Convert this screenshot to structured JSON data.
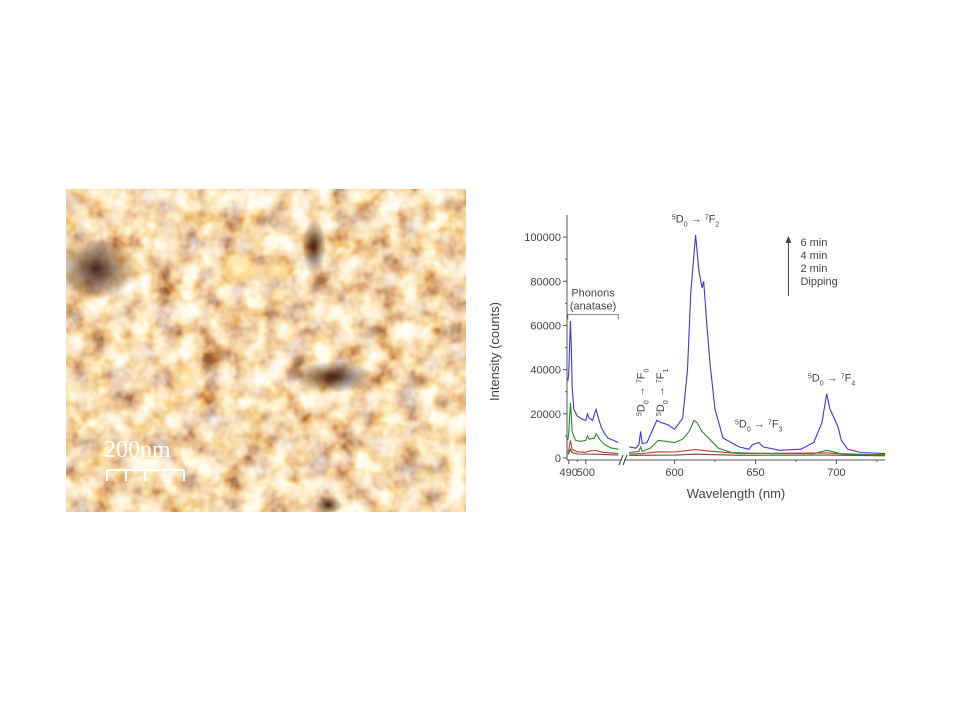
{
  "afm_image": {
    "scale_bar_label": "200nm",
    "colors": {
      "dark": "#3a0e00",
      "mid": "#b85510",
      "light": "#fff0b0"
    }
  },
  "chart_data": {
    "type": "line",
    "xlabel": "Wavelength (nm)",
    "ylabel": "Intensity (counts)",
    "xlim_left": [
      489,
      520
    ],
    "xlim_right": [
      570,
      730
    ],
    "ylim": [
      0,
      110000
    ],
    "x_ticks": [
      490,
      500,
      600,
      650,
      700
    ],
    "y_ticks": [
      0,
      20000,
      40000,
      60000,
      80000,
      100000
    ],
    "axis_break": true,
    "grid": false,
    "legend": {
      "placement": "top-right",
      "entries": [
        "6 min",
        "4 min",
        "2 min",
        "Dipping"
      ],
      "arrow": "up"
    },
    "annotations": [
      {
        "base": "D",
        "sup1": "5",
        "sub1": "0",
        "final": "F",
        "sup2": "7",
        "sub2": "2",
        "x": 613,
        "y": 104000,
        "rotated": false
      },
      {
        "base": "D",
        "sup1": "5",
        "sub1": "0",
        "final": "F",
        "sup2": "7",
        "sub2": "0",
        "x": 579,
        "y": 19000,
        "rotated": true
      },
      {
        "base": "D",
        "sup1": "5",
        "sub1": "0",
        "final": "F",
        "sup2": "7",
        "sub2": "1",
        "x": 591,
        "y": 19000,
        "rotated": true
      },
      {
        "base": "D",
        "sup1": "5",
        "sub1": "0",
        "final": "F",
        "sup2": "7",
        "sub2": "3",
        "x": 652,
        "y": 11000,
        "rotated": false
      },
      {
        "base": "D",
        "sup1": "5",
        "sub1": "0",
        "final": "F",
        "sup2": "7",
        "sub2": "4",
        "x": 697,
        "y": 32000,
        "rotated": false
      }
    ],
    "phonons_label": [
      "Phonons",
      "(anatase)"
    ],
    "series": [
      {
        "color": "#3a3adc",
        "left": [
          [
            489.5,
            35000
          ],
          [
            490,
            38000
          ],
          [
            491,
            62000
          ],
          [
            491.5,
            50000
          ],
          [
            492,
            33000
          ],
          [
            493,
            22000
          ],
          [
            495,
            19000
          ],
          [
            498,
            17500
          ],
          [
            500,
            17000
          ],
          [
            501,
            20000
          ],
          [
            502,
            18000
          ],
          [
            504,
            17000
          ],
          [
            505,
            20000
          ],
          [
            506,
            22000
          ],
          [
            507,
            19000
          ],
          [
            509,
            14000
          ],
          [
            511,
            11000
          ],
          [
            513,
            9000
          ],
          [
            516,
            8000
          ],
          [
            519,
            7000
          ]
        ],
        "right": [
          [
            572,
            5000
          ],
          [
            576,
            4500
          ],
          [
            578,
            6000
          ],
          [
            579,
            12000
          ],
          [
            580,
            6500
          ],
          [
            583,
            7000
          ],
          [
            586,
            12000
          ],
          [
            589,
            17000
          ],
          [
            592,
            16000
          ],
          [
            596,
            15000
          ],
          [
            600,
            13000
          ],
          [
            605,
            18000
          ],
          [
            608,
            40000
          ],
          [
            610,
            75000
          ],
          [
            613,
            101000
          ],
          [
            615,
            85000
          ],
          [
            617,
            77000
          ],
          [
            618,
            80000
          ],
          [
            620,
            60000
          ],
          [
            622,
            42000
          ],
          [
            625,
            22000
          ],
          [
            630,
            9000
          ],
          [
            640,
            5000
          ],
          [
            646,
            4000
          ],
          [
            648,
            6000
          ],
          [
            652,
            7000
          ],
          [
            655,
            5000
          ],
          [
            665,
            3500
          ],
          [
            678,
            4000
          ],
          [
            686,
            7000
          ],
          [
            691,
            16000
          ],
          [
            694,
            29000
          ],
          [
            696,
            22000
          ],
          [
            698,
            19000
          ],
          [
            701,
            14000
          ],
          [
            703,
            8000
          ],
          [
            707,
            4000
          ],
          [
            715,
            2500
          ],
          [
            730,
            2000
          ]
        ]
      },
      {
        "color": "#2a8a2a",
        "left": [
          [
            489.5,
            8000
          ],
          [
            490,
            11000
          ],
          [
            491,
            25000
          ],
          [
            491.5,
            20000
          ],
          [
            492,
            12000
          ],
          [
            494,
            8000
          ],
          [
            497,
            7500
          ],
          [
            500,
            8000
          ],
          [
            501,
            10000
          ],
          [
            502,
            8500
          ],
          [
            505,
            9000
          ],
          [
            506,
            11000
          ],
          [
            508,
            8500
          ],
          [
            511,
            6000
          ],
          [
            515,
            4500
          ],
          [
            519,
            4000
          ]
        ],
        "right": [
          [
            572,
            2500
          ],
          [
            578,
            3000
          ],
          [
            579,
            5000
          ],
          [
            580,
            3000
          ],
          [
            585,
            4500
          ],
          [
            590,
            8000
          ],
          [
            595,
            7500
          ],
          [
            600,
            7000
          ],
          [
            605,
            8500
          ],
          [
            609,
            12000
          ],
          [
            612,
            17000
          ],
          [
            614,
            16000
          ],
          [
            617,
            12000
          ],
          [
            621,
            9000
          ],
          [
            627,
            4500
          ],
          [
            635,
            2500
          ],
          [
            660,
            2000
          ],
          [
            686,
            2000
          ],
          [
            694,
            3500
          ],
          [
            698,
            2800
          ],
          [
            705,
            1500
          ],
          [
            730,
            1500
          ]
        ]
      },
      {
        "color": "#c43a3a",
        "left": [
          [
            489.5,
            2500
          ],
          [
            490,
            3500
          ],
          [
            491,
            8000
          ],
          [
            491.5,
            6000
          ],
          [
            492,
            4000
          ],
          [
            495,
            2800
          ],
          [
            500,
            2600
          ],
          [
            502,
            3200
          ],
          [
            506,
            3400
          ],
          [
            510,
            2600
          ],
          [
            519,
            2000
          ]
        ],
        "right": [
          [
            572,
            1800
          ],
          [
            580,
            2000
          ],
          [
            590,
            2800
          ],
          [
            600,
            2700
          ],
          [
            613,
            3800
          ],
          [
            620,
            3200
          ],
          [
            640,
            2000
          ],
          [
            694,
            2300
          ],
          [
            700,
            2000
          ],
          [
            730,
            1300
          ]
        ]
      },
      {
        "color": "#6b4b3a",
        "left": [
          [
            489.5,
            1500
          ],
          [
            490,
            2000
          ],
          [
            491,
            4000
          ],
          [
            492,
            2500
          ],
          [
            495,
            1800
          ],
          [
            505,
            1700
          ],
          [
            519,
            1300
          ]
        ],
        "right": [
          [
            572,
            1200
          ],
          [
            600,
            1300
          ],
          [
            613,
            1700
          ],
          [
            640,
            1200
          ],
          [
            694,
            1300
          ],
          [
            730,
            1000
          ]
        ]
      }
    ]
  }
}
